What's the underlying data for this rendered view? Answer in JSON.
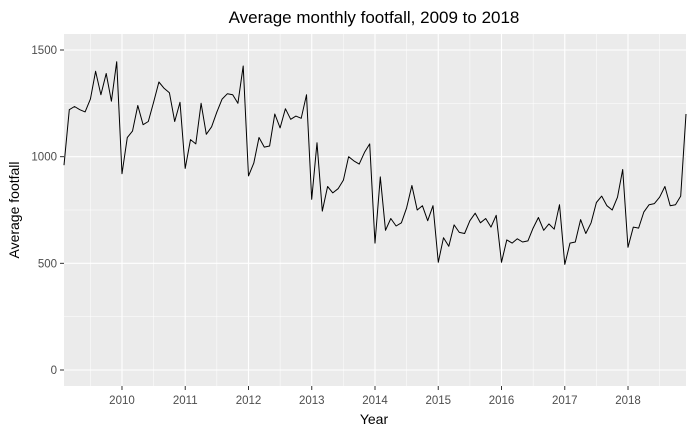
{
  "chart_data": {
    "type": "line",
    "title": "Average monthly footfall, 2009 to 2018",
    "xlabel": "Year",
    "ylabel": "Average footfall",
    "x_ticks": [
      "2010",
      "2011",
      "2012",
      "2013",
      "2014",
      "2015",
      "2016",
      "2017",
      "2018"
    ],
    "y_ticks": [
      "0",
      "500",
      "1000",
      "1500"
    ],
    "xlim": [
      "2009-02",
      "2018-12"
    ],
    "ylim": [
      -75,
      1575
    ],
    "grid": true,
    "legend": "none",
    "line_color": "#000000",
    "panel_color": "#ebebeb",
    "series": [
      {
        "x": [
          "2009-02",
          "2009-03",
          "2009-04",
          "2009-05",
          "2009-06",
          "2009-07",
          "2009-08",
          "2009-09",
          "2009-10",
          "2009-11",
          "2009-12",
          "2010-01",
          "2010-02",
          "2010-03",
          "2010-04",
          "2010-05",
          "2010-06",
          "2010-07",
          "2010-08",
          "2010-09",
          "2010-10",
          "2010-11",
          "2010-12",
          "2011-01",
          "2011-02",
          "2011-03",
          "2011-04",
          "2011-05",
          "2011-06",
          "2011-07",
          "2011-08",
          "2011-09",
          "2011-10",
          "2011-11",
          "2011-12",
          "2012-01",
          "2012-02",
          "2012-03",
          "2012-04",
          "2012-05",
          "2012-06",
          "2012-07",
          "2012-08",
          "2012-09",
          "2012-10",
          "2012-11",
          "2012-12",
          "2013-01",
          "2013-02",
          "2013-03",
          "2013-04",
          "2013-05",
          "2013-06",
          "2013-07",
          "2013-08",
          "2013-09",
          "2013-10",
          "2013-11",
          "2013-12",
          "2014-01",
          "2014-02",
          "2014-03",
          "2014-04",
          "2014-05",
          "2014-06",
          "2014-07",
          "2014-08",
          "2014-09",
          "2014-10",
          "2014-11",
          "2014-12",
          "2015-01",
          "2015-02",
          "2015-03",
          "2015-04",
          "2015-05",
          "2015-06",
          "2015-07",
          "2015-08",
          "2015-09",
          "2015-10",
          "2015-11",
          "2015-12",
          "2016-01",
          "2016-02",
          "2016-03",
          "2016-04",
          "2016-05",
          "2016-06",
          "2016-07",
          "2016-08",
          "2016-09",
          "2016-10",
          "2016-11",
          "2016-12",
          "2017-01",
          "2017-02",
          "2017-03",
          "2017-04",
          "2017-05",
          "2017-06",
          "2017-07",
          "2017-08",
          "2017-09",
          "2017-10",
          "2017-11",
          "2017-12",
          "2018-01",
          "2018-02",
          "2018-03",
          "2018-04",
          "2018-05",
          "2018-06",
          "2018-07",
          "2018-08",
          "2018-09",
          "2018-10",
          "2018-11",
          "2018-12"
        ],
        "y": [
          960,
          1220,
          1235,
          1220,
          1210,
          1270,
          1400,
          1290,
          1390,
          1260,
          1445,
          920,
          1090,
          1120,
          1240,
          1150,
          1165,
          1255,
          1350,
          1320,
          1300,
          1165,
          1255,
          945,
          1080,
          1060,
          1250,
          1105,
          1140,
          1210,
          1270,
          1295,
          1290,
          1250,
          1425,
          910,
          970,
          1090,
          1045,
          1050,
          1200,
          1135,
          1225,
          1175,
          1190,
          1180,
          1290,
          800,
          1065,
          745,
          860,
          830,
          850,
          890,
          1000,
          980,
          965,
          1020,
          1060,
          595,
          905,
          655,
          710,
          675,
          690,
          760,
          865,
          750,
          770,
          700,
          770,
          505,
          620,
          580,
          680,
          645,
          640,
          700,
          735,
          690,
          710,
          670,
          725,
          505,
          610,
          595,
          615,
          600,
          605,
          665,
          715,
          655,
          685,
          660,
          775,
          495,
          595,
          600,
          705,
          640,
          690,
          785,
          815,
          770,
          750,
          810,
          940,
          575,
          670,
          665,
          740,
          775,
          780,
          810,
          860,
          770,
          775,
          815,
          1200
        ]
      }
    ]
  }
}
